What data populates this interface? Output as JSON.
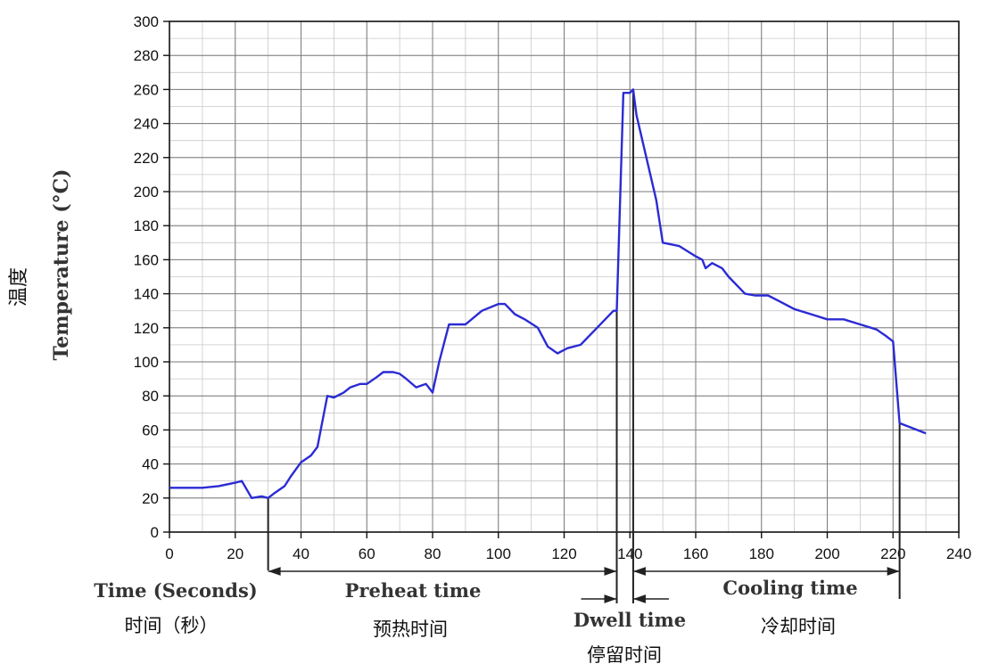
{
  "chart_data": {
    "type": "line",
    "ylabel": "Temperature (°C)",
    "ylabel_cn": "温度",
    "xlabel": "Time (Seconds)",
    "xlabel_cn": "时间（秒）",
    "xlim": [
      0,
      240
    ],
    "ylim": [
      0,
      300
    ],
    "x_ticks": [
      0,
      20,
      40,
      60,
      80,
      100,
      120,
      140,
      160,
      180,
      200,
      220,
      240
    ],
    "y_ticks": [
      0,
      20,
      40,
      60,
      80,
      100,
      120,
      140,
      160,
      180,
      200,
      220,
      240,
      260,
      280,
      300
    ],
    "grid": true,
    "series": [
      {
        "color": "#2b2bd4",
        "points": [
          [
            0,
            26
          ],
          [
            10,
            26
          ],
          [
            15,
            27
          ],
          [
            20,
            29
          ],
          [
            22,
            30
          ],
          [
            25,
            20
          ],
          [
            28,
            21
          ],
          [
            30,
            20
          ],
          [
            32,
            23
          ],
          [
            35,
            27
          ],
          [
            37,
            33
          ],
          [
            40,
            41
          ],
          [
            43,
            45
          ],
          [
            45,
            50
          ],
          [
            48,
            80
          ],
          [
            50,
            79
          ],
          [
            53,
            82
          ],
          [
            55,
            85
          ],
          [
            58,
            87
          ],
          [
            60,
            87
          ],
          [
            63,
            91
          ],
          [
            65,
            94
          ],
          [
            68,
            94
          ],
          [
            70,
            93
          ],
          [
            72,
            90
          ],
          [
            75,
            85
          ],
          [
            78,
            87
          ],
          [
            80,
            82
          ],
          [
            82,
            100
          ],
          [
            85,
            122
          ],
          [
            90,
            122
          ],
          [
            95,
            130
          ],
          [
            100,
            134
          ],
          [
            102,
            134
          ],
          [
            105,
            128
          ],
          [
            108,
            125
          ],
          [
            112,
            120
          ],
          [
            115,
            109
          ],
          [
            118,
            105
          ],
          [
            121,
            108
          ],
          [
            125,
            110
          ],
          [
            130,
            120
          ],
          [
            135,
            130
          ],
          [
            136,
            130
          ],
          [
            138,
            258
          ],
          [
            140,
            258
          ],
          [
            141,
            260
          ],
          [
            142,
            245
          ],
          [
            145,
            220
          ],
          [
            148,
            195
          ],
          [
            150,
            170
          ],
          [
            155,
            168
          ],
          [
            160,
            162
          ],
          [
            162,
            160
          ],
          [
            163,
            155
          ],
          [
            165,
            158
          ],
          [
            168,
            155
          ],
          [
            170,
            150
          ],
          [
            175,
            140
          ],
          [
            178,
            139
          ],
          [
            182,
            139
          ],
          [
            185,
            136
          ],
          [
            190,
            131
          ],
          [
            195,
            128
          ],
          [
            200,
            125
          ],
          [
            205,
            125
          ],
          [
            210,
            122
          ],
          [
            215,
            119
          ],
          [
            218,
            115
          ],
          [
            220,
            112
          ],
          [
            222,
            64
          ],
          [
            226,
            61
          ],
          [
            230,
            58
          ]
        ]
      }
    ],
    "markers": [
      30,
      136,
      141,
      222
    ],
    "phases": [
      {
        "label": "Preheat time",
        "label_cn": "预热时间",
        "from": 30,
        "to": 136
      },
      {
        "label": "Dwell time",
        "label_cn": "停留时间",
        "from": 136,
        "to": 141
      },
      {
        "label": "Cooling time",
        "label_cn": "冷却时间",
        "from": 141,
        "to": 222
      }
    ]
  }
}
